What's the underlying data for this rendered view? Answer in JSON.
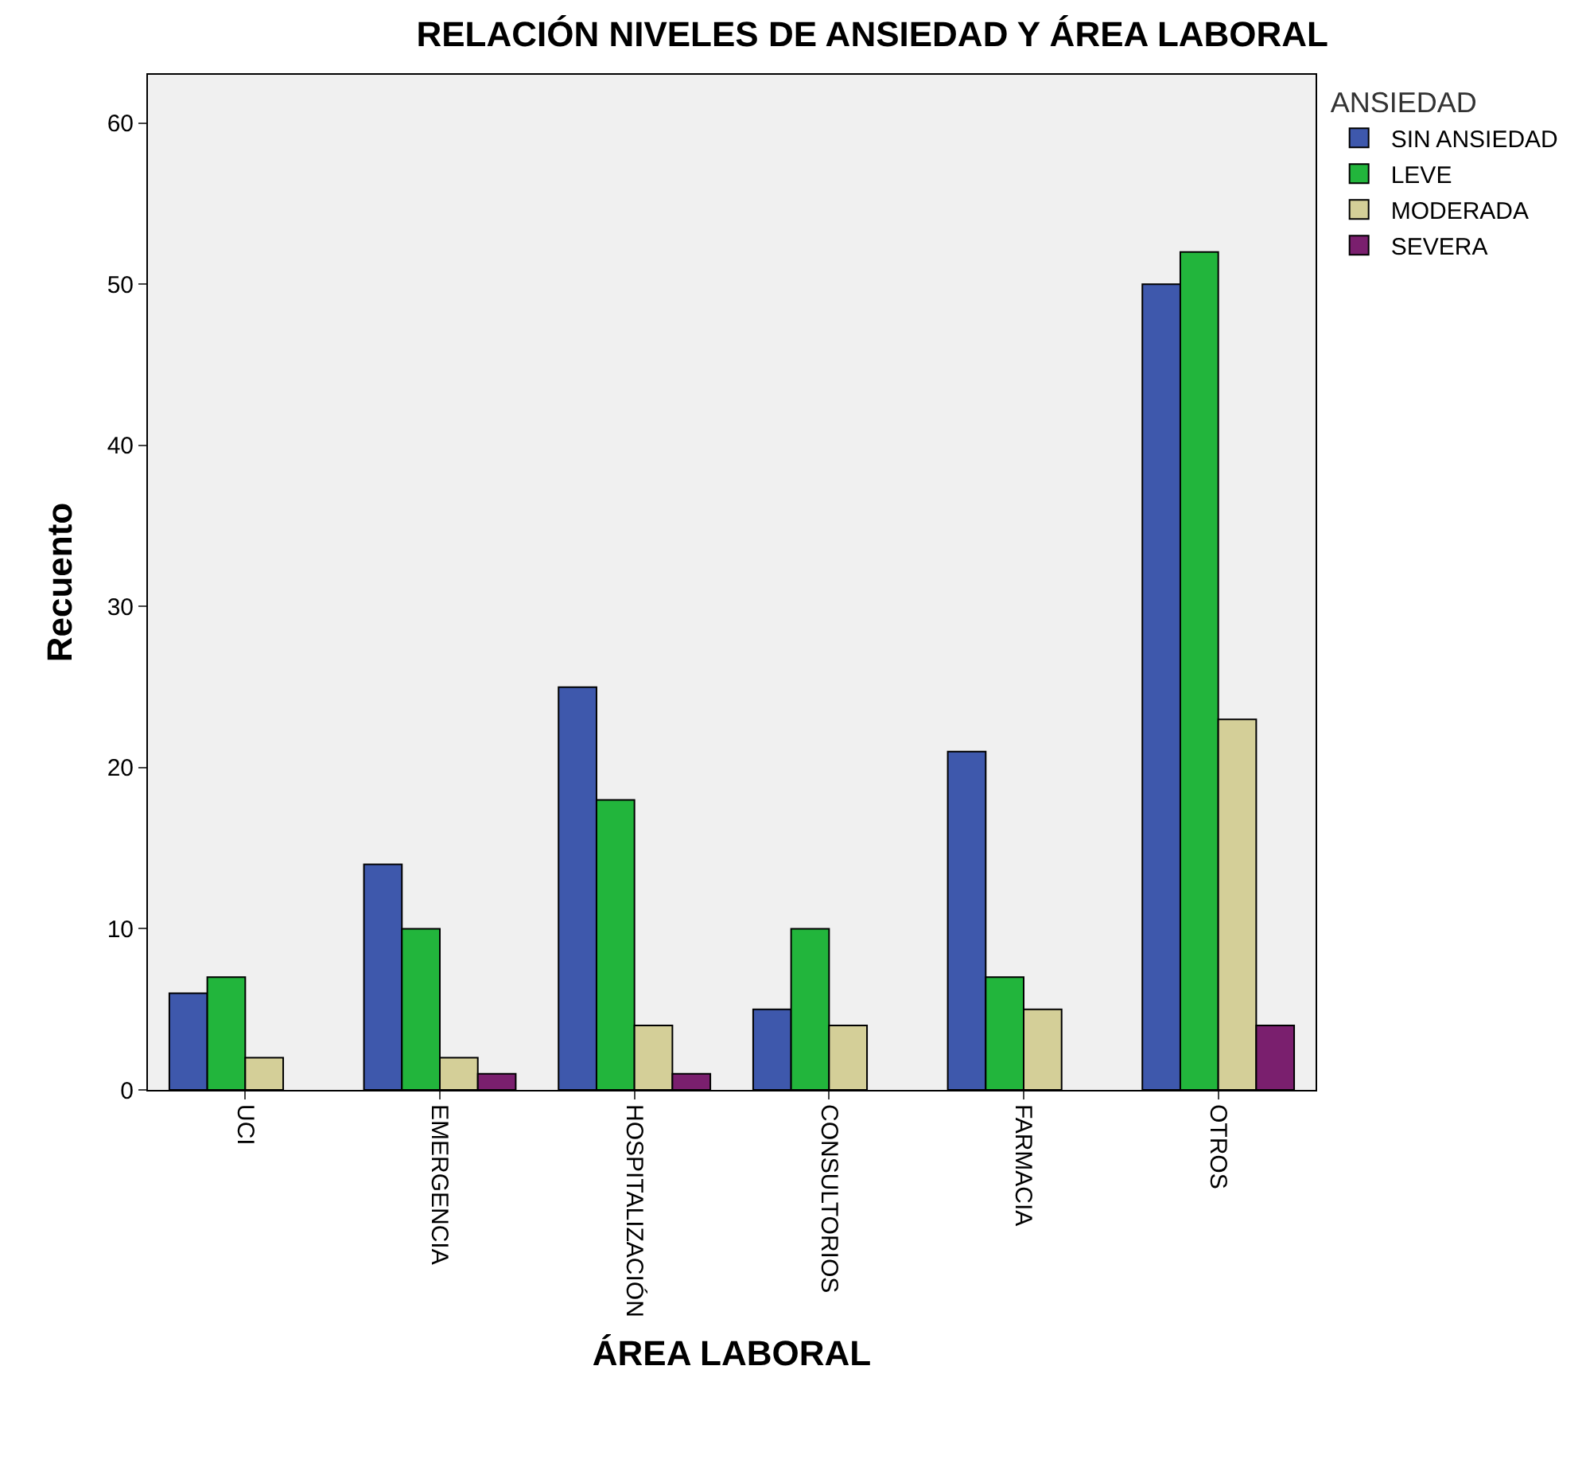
{
  "chart_data": {
    "type": "bar",
    "title": "RELACIÓN NIVELES DE ANSIEDAD Y ÁREA LABORAL",
    "xlabel": "ÁREA LABORAL",
    "ylabel": "Recuento",
    "legend_title": "ANSIEDAD",
    "categories": [
      "UCI",
      "EMERGENCIA",
      "HOSPITALIZACIÓN",
      "CONSULTORIOS",
      "FARMACIA",
      "OTROS"
    ],
    "series": [
      {
        "name": "SIN ANSIEDAD",
        "color": "#3e58ac",
        "values": [
          6,
          14,
          25,
          5,
          21,
          50
        ]
      },
      {
        "name": "LEVE",
        "color": "#22b53c",
        "values": [
          7,
          10,
          18,
          10,
          7,
          52
        ]
      },
      {
        "name": "MODERADA",
        "color": "#d4cf98",
        "values": [
          2,
          2,
          4,
          4,
          5,
          23
        ]
      },
      {
        "name": "SEVERA",
        "color": "#7a1f6e",
        "values": [
          null,
          1,
          1,
          null,
          null,
          4
        ]
      }
    ],
    "ylim": [
      0,
      63
    ],
    "yticks": [
      0,
      10,
      20,
      30,
      40,
      50,
      60
    ],
    "grid": false,
    "legend": "top right"
  }
}
